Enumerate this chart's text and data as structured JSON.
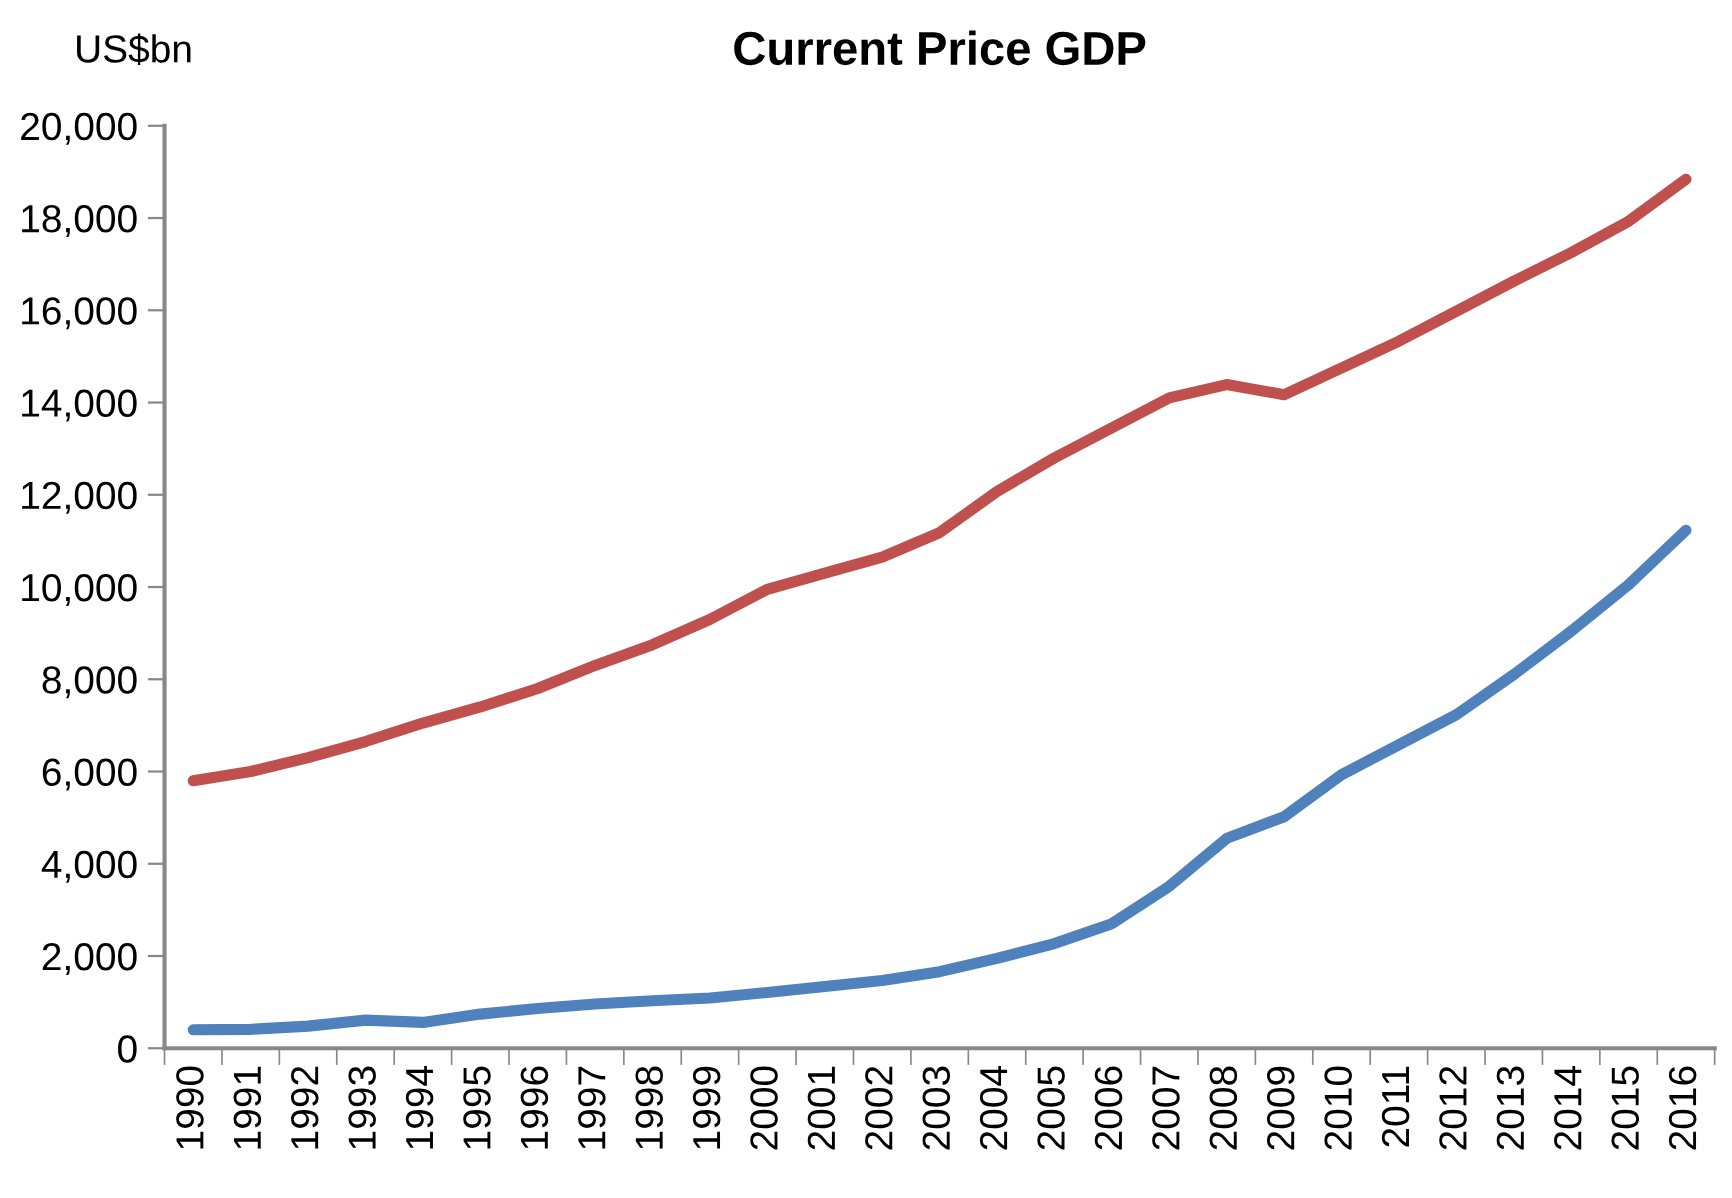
{
  "chart_data": {
    "type": "line",
    "title": "Current Price GDP",
    "ylabel": "US$bn",
    "categories": [
      "1990",
      "1991",
      "1992",
      "1993",
      "1994",
      "1995",
      "1996",
      "1997",
      "1998",
      "1999",
      "2000",
      "2001",
      "2002",
      "2003",
      "2004",
      "2005",
      "2006",
      "2007",
      "2008",
      "2009",
      "2010",
      "2011",
      "2012",
      "2013",
      "2014",
      "2015",
      "2016"
    ],
    "series": [
      {
        "color": "#c0504d",
        "values": [
          5800,
          6000,
          6300,
          6650,
          7050,
          7400,
          7800,
          8300,
          8750,
          9300,
          9950,
          10300,
          10650,
          11180,
          12070,
          12800,
          13450,
          14100,
          14390,
          14170,
          14750,
          15330,
          15980,
          16630,
          17250,
          17930,
          18840
        ]
      },
      {
        "color": "#4f81bd",
        "values": [
          400,
          410,
          480,
          610,
          560,
          740,
          860,
          960,
          1030,
          1090,
          1210,
          1340,
          1470,
          1660,
          1950,
          2270,
          2700,
          3510,
          4550,
          5020,
          5930,
          6580,
          7230,
          8100,
          9040,
          10050,
          11230
        ]
      }
    ],
    "ylim": [
      0,
      20000
    ],
    "yticks": [
      {
        "value": 0,
        "label": "0"
      },
      {
        "value": 2000,
        "label": "2,000"
      },
      {
        "value": 4000,
        "label": "4,000"
      },
      {
        "value": 6000,
        "label": "6,000"
      },
      {
        "value": 8000,
        "label": "8,000"
      },
      {
        "value": 10000,
        "label": "10,000"
      },
      {
        "value": 12000,
        "label": "12,000"
      },
      {
        "value": 14000,
        "label": "14,000"
      },
      {
        "value": 16000,
        "label": "16,000"
      },
      {
        "value": 18000,
        "label": "18,000"
      },
      {
        "value": 20000,
        "label": "20,000"
      }
    ],
    "grid": false,
    "marker": "none",
    "line_style": "solid"
  }
}
